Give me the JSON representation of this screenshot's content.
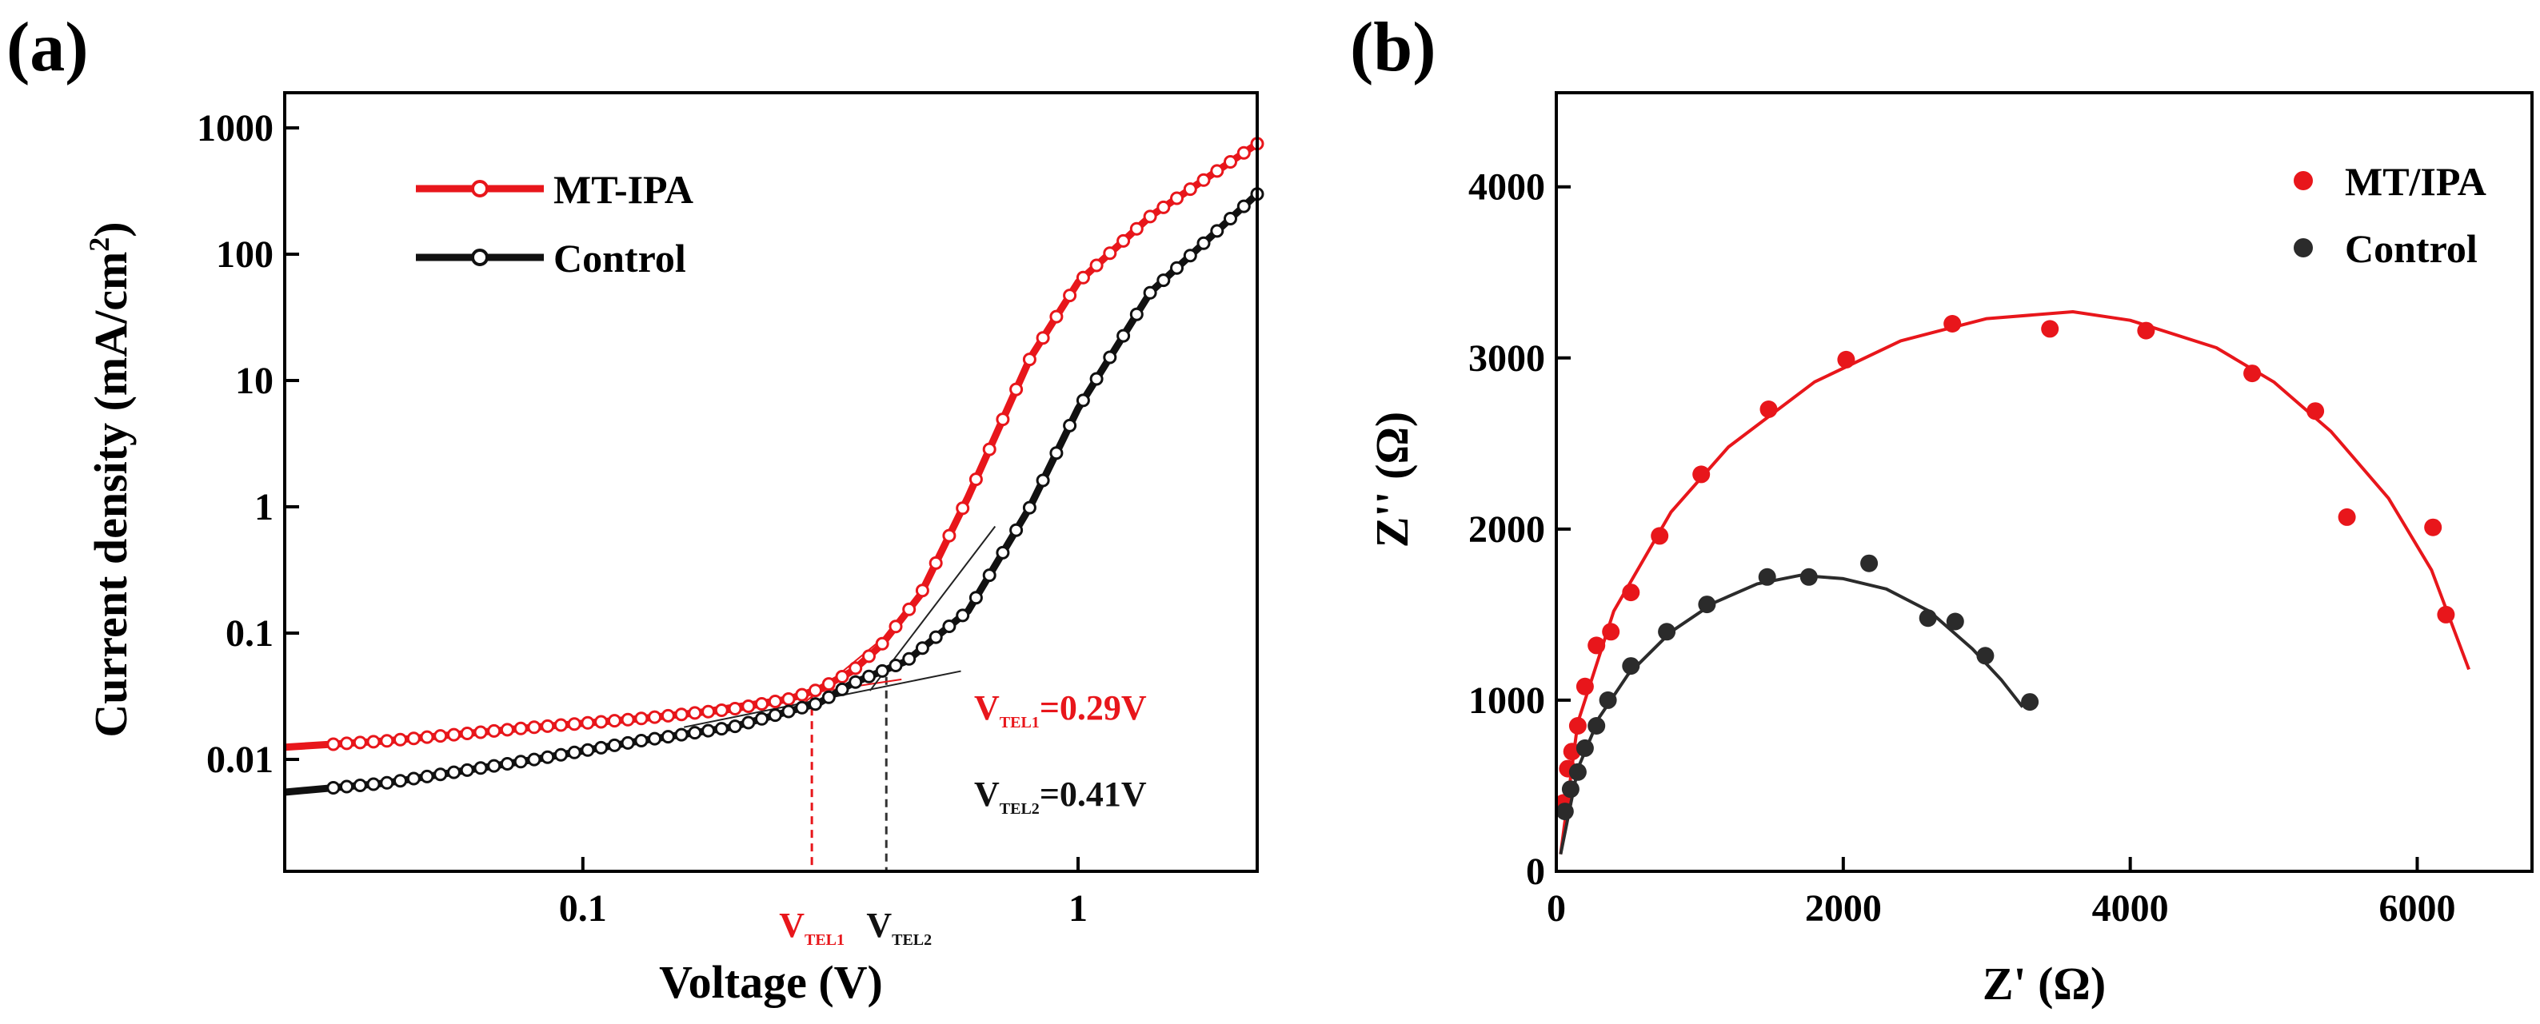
{
  "panels": {
    "a": {
      "label": "(a)",
      "chart_data": {
        "type": "line",
        "scale": {
          "x": "log",
          "y": "log"
        },
        "xlabel": "Voltage (V)",
        "ylabel": "Current density (mA/cm",
        "ylabel_sup": "2",
        "ylabel_end": ")",
        "xlim": [
          0.025,
          2.3
        ],
        "ylim": [
          0.0013,
          1900
        ],
        "xticks": [
          {
            "value": 0.1,
            "label": "0.1"
          },
          {
            "value": 1,
            "label": "1"
          }
        ],
        "yticks": [
          {
            "value": 0.01,
            "label": "0.01"
          },
          {
            "value": 0.1,
            "label": "0.1"
          },
          {
            "value": 1,
            "label": "1"
          },
          {
            "value": 10,
            "label": "10"
          },
          {
            "value": 100,
            "label": "100"
          },
          {
            "value": 1000,
            "label": "1000"
          }
        ],
        "series": [
          {
            "name": "MT-IPA",
            "color": "#e8161b",
            "x": [
              0.025,
              0.04,
              0.08,
              0.13,
              0.2,
              0.26,
              0.3,
              0.35,
              0.4,
              0.48,
              0.6,
              0.8,
              1.0,
              1.4,
              2.3
            ],
            "y": [
              0.0125,
              0.014,
              0.018,
              0.021,
              0.025,
              0.03,
              0.036,
              0.05,
              0.08,
              0.2,
              1.2,
              15,
              60,
              200,
              750
            ]
          },
          {
            "name": "Control",
            "color": "#111111",
            "x": [
              0.025,
              0.04,
              0.08,
              0.13,
              0.2,
              0.3,
              0.35,
              0.45,
              0.6,
              0.8,
              1.0,
              1.4,
              2.3
            ],
            "y": [
              0.0055,
              0.0065,
              0.01,
              0.014,
              0.018,
              0.028,
              0.04,
              0.06,
              0.15,
              1.0,
              6,
              50,
              300
            ]
          }
        ],
        "annotations": {
          "vtel1": {
            "x": 0.29,
            "main": "V",
            "sub": "TEL1",
            "eq": "=0.29V",
            "color": "#e8161b"
          },
          "vtel2": {
            "x": 0.41,
            "main": "V",
            "sub": "TEL2",
            "eq": "=0.41V",
            "color": "#111111"
          }
        }
      }
    },
    "b": {
      "label": "(b)",
      "chart_data": {
        "type": "scatter",
        "xlabel": "Z' (Ω)",
        "ylabel": "Z'' (Ω)",
        "xlim": [
          0,
          6800
        ],
        "ylim": [
          0,
          4550
        ],
        "xticks": [
          {
            "value": 0,
            "label": "0"
          },
          {
            "value": 2000,
            "label": "2000"
          },
          {
            "value": 4000,
            "label": "4000"
          },
          {
            "value": 6000,
            "label": "6000"
          }
        ],
        "yticks": [
          {
            "value": 0,
            "label": "0"
          },
          {
            "value": 1000,
            "label": "1000"
          },
          {
            "value": 2000,
            "label": "2000"
          },
          {
            "value": 3000,
            "label": "3000"
          },
          {
            "value": 4000,
            "label": "4000"
          }
        ],
        "series": [
          {
            "name": "MT/IPA",
            "color": "#e8161b",
            "x": [
              50,
              80,
              110,
              150,
              200,
              280,
              380,
              520,
              720,
              1010,
              1480,
              2020,
              2760,
              3440,
              4110,
              4850,
              5290,
              5510,
              6110,
              6200
            ],
            "y": [
              400,
              600,
              700,
              850,
              1080,
              1320,
              1400,
              1630,
              1960,
              2320,
              2700,
              2990,
              3200,
              3170,
              3160,
              2910,
              2690,
              2070,
              2010,
              1500
            ],
            "fit": {
              "x": [
                30,
                150,
                400,
                800,
                1200,
                1800,
                2400,
                3000,
                3600,
                4000,
                4600,
                5000,
                5400,
                5800,
                6100,
                6360
              ],
              "y": [
                100,
                870,
                1520,
                2100,
                2480,
                2860,
                3100,
                3230,
                3270,
                3220,
                3060,
                2860,
                2570,
                2180,
                1760,
                1180
              ]
            }
          },
          {
            "name": "Control",
            "color": "#2b2b2b",
            "x": [
              60,
              100,
              150,
              200,
              280,
              360,
              520,
              770,
              1050,
              1470,
              1760,
              2180,
              2590,
              2780,
              2990,
              3300
            ],
            "y": [
              350,
              480,
              580,
              720,
              850,
              1000,
              1200,
              1400,
              1560,
              1720,
              1720,
              1800,
              1480,
              1460,
              1260,
              990
            ],
            "fit": {
              "x": [
                30,
                150,
                300,
                500,
                800,
                1100,
                1400,
                1700,
                2000,
                2300,
                2600,
                2900,
                3100,
                3250
              ],
              "y": [
                100,
                600,
                900,
                1150,
                1400,
                1570,
                1680,
                1730,
                1710,
                1650,
                1520,
                1300,
                1120,
                960
              ]
            }
          }
        ]
      }
    }
  }
}
